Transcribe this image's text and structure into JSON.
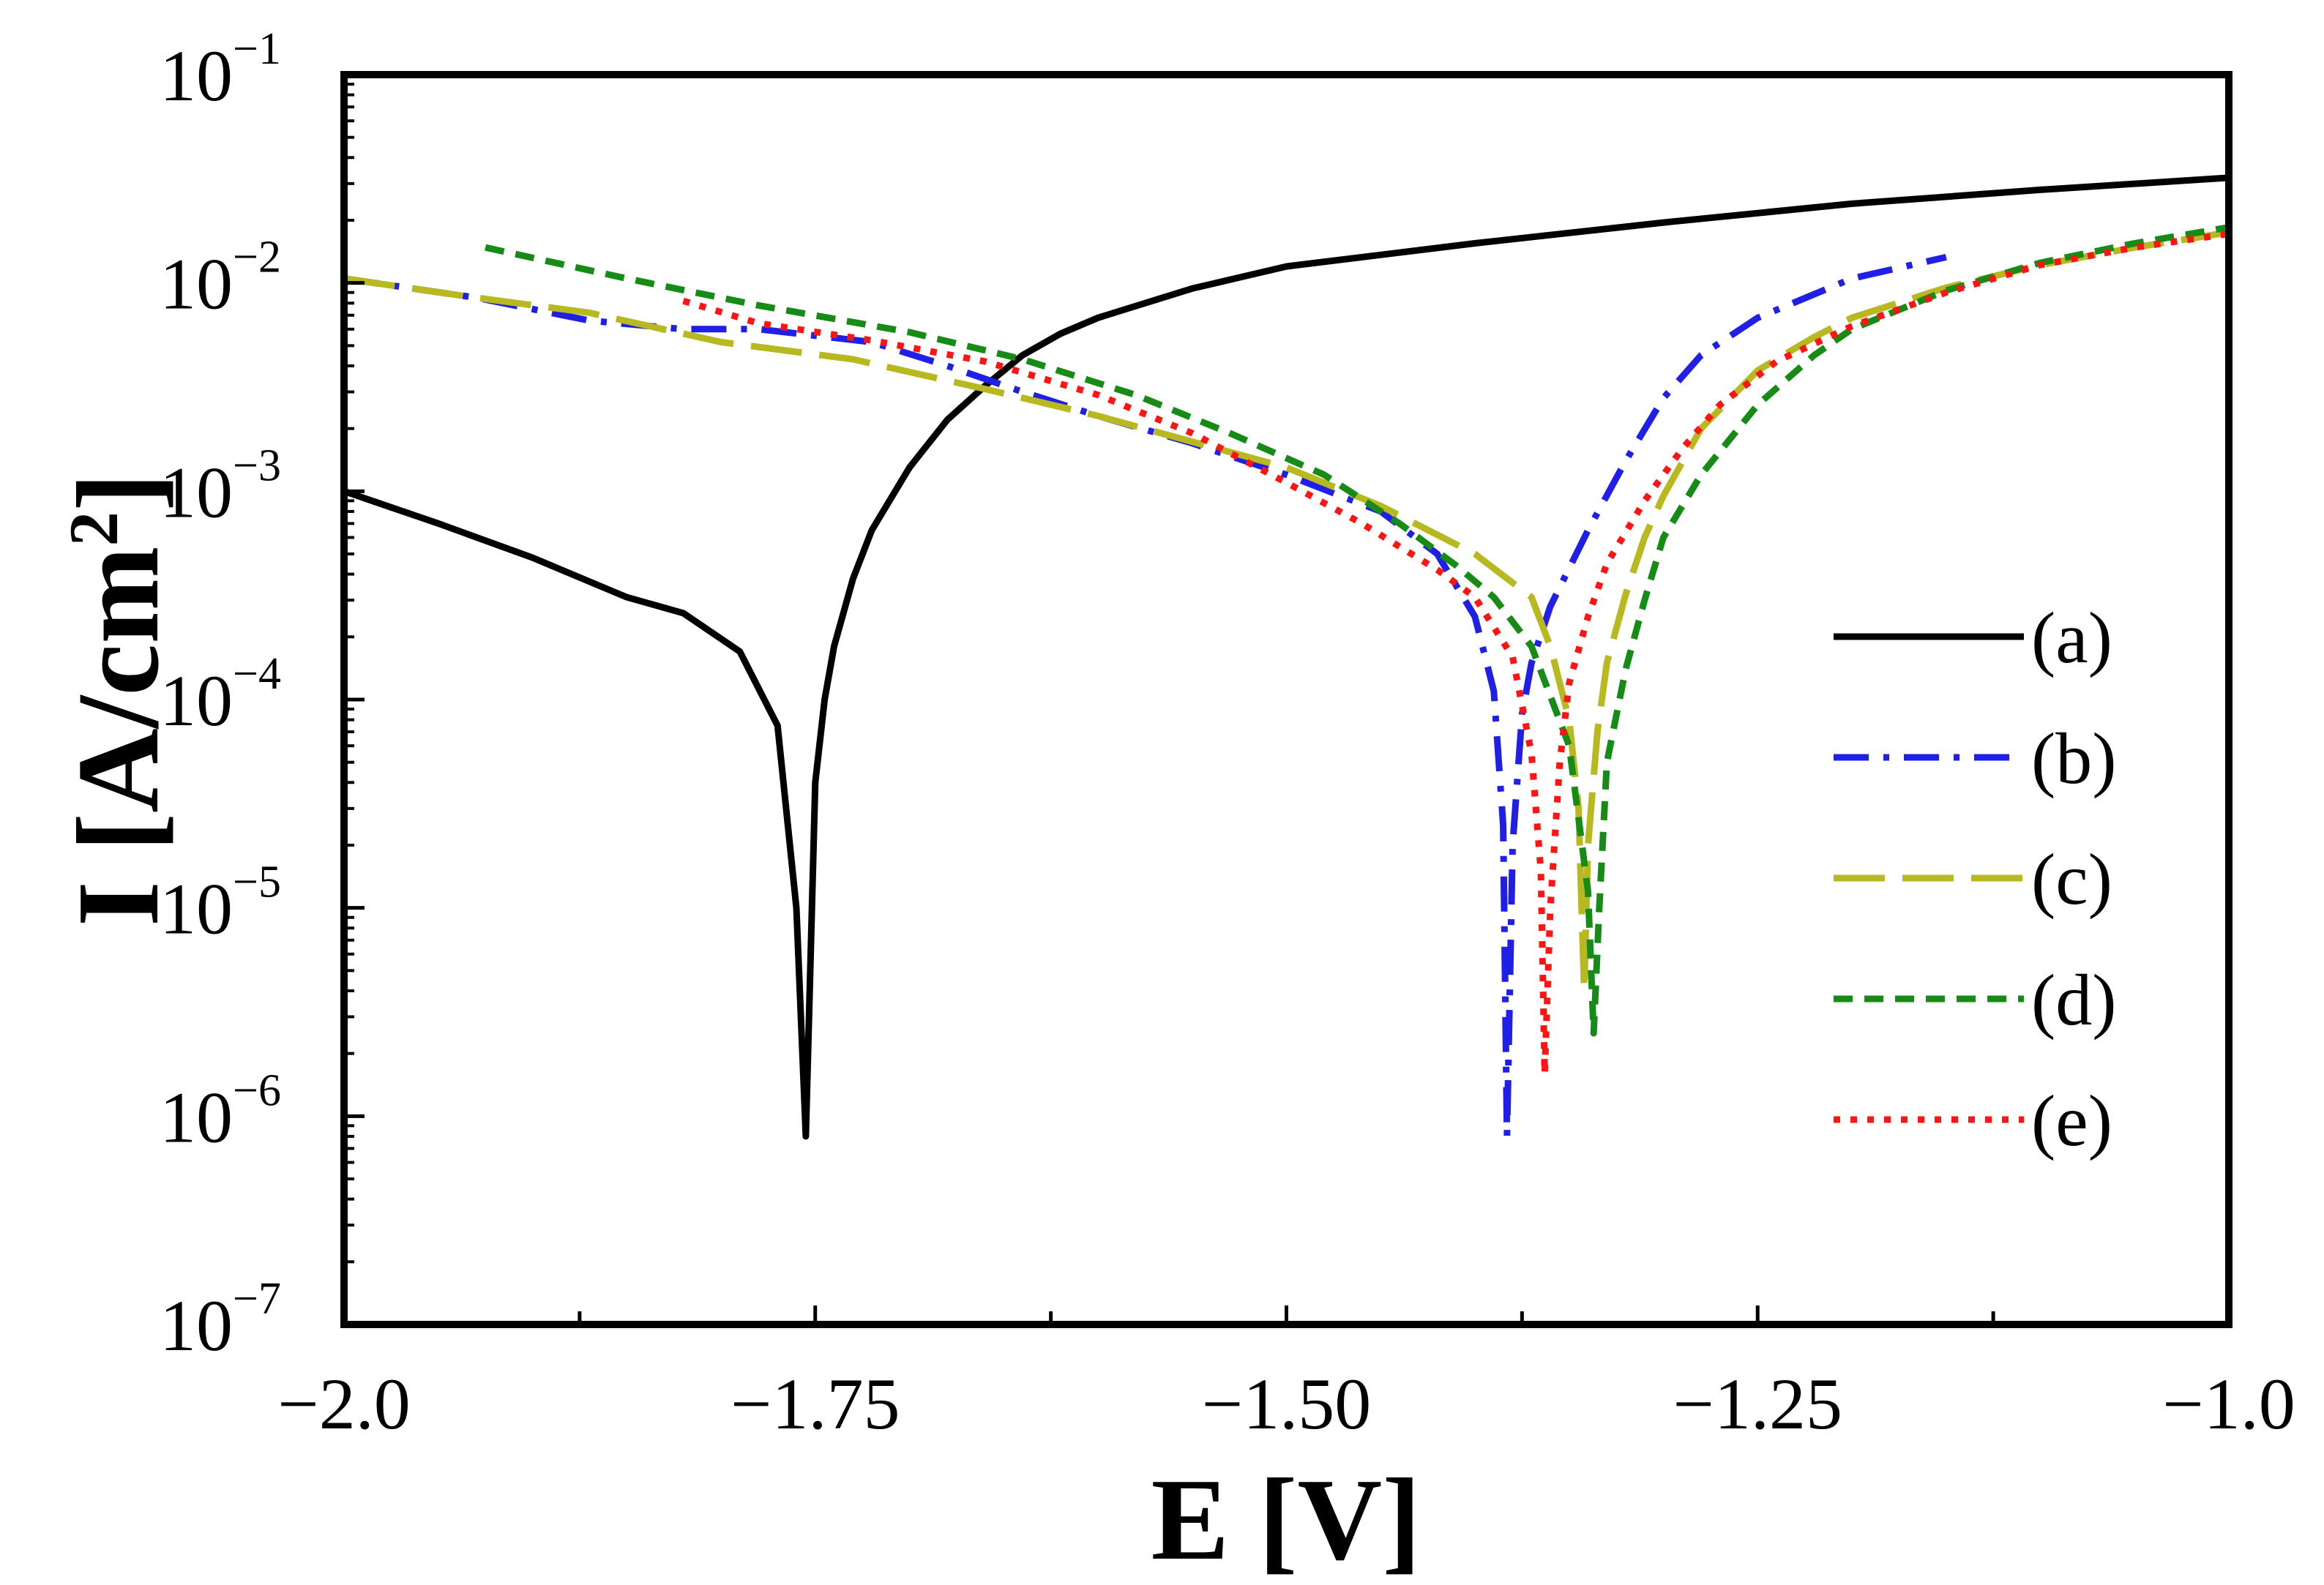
{
  "chart_data": {
    "type": "line",
    "title": "",
    "xlabel": "E [V]",
    "ylabel": "I [A/cm²]",
    "ylabel_parts": {
      "main": "I [A/cm",
      "sup": "2",
      "close": "]"
    },
    "yscale": "log",
    "xlim": [
      -2.0,
      -1.0
    ],
    "ylim": [
      1e-07,
      0.1
    ],
    "x_ticks": [
      -2.0,
      -1.75,
      -1.5,
      -1.25,
      -1.0
    ],
    "x_tick_labels": [
      "−2.0",
      "−1.75",
      "−1.50",
      "−1.25",
      "−1.0"
    ],
    "y_ticks": [
      1e-07,
      1e-06,
      1e-05,
      0.0001,
      0.001,
      0.01,
      0.1
    ],
    "y_tick_labels": [
      {
        "base": "10",
        "exp": "−7"
      },
      {
        "base": "10",
        "exp": "−6"
      },
      {
        "base": "10",
        "exp": "−5"
      },
      {
        "base": "10",
        "exp": "−4"
      },
      {
        "base": "10",
        "exp": "−3"
      },
      {
        "base": "10",
        "exp": "−2"
      },
      {
        "base": "10",
        "exp": "−1"
      }
    ],
    "grid": false,
    "legend_position": "right",
    "series": [
      {
        "name": "(a)",
        "color": "#000000",
        "style": "solid",
        "points": [
          [
            -2.0,
            0.001
          ],
          [
            -1.95,
            0.0007
          ],
          [
            -1.9,
            0.00048
          ],
          [
            -1.85,
            0.00031
          ],
          [
            -1.82,
            0.00026
          ],
          [
            -1.79,
            0.00017
          ],
          [
            -1.77,
            7.5e-05
          ],
          [
            -1.76,
            1e-05
          ],
          [
            -1.755,
            8e-07
          ],
          [
            -1.75,
            4e-05
          ],
          [
            -1.745,
            0.0001
          ],
          [
            -1.74,
            0.00018
          ],
          [
            -1.73,
            0.00038
          ],
          [
            -1.72,
            0.00065
          ],
          [
            -1.7,
            0.0013
          ],
          [
            -1.68,
            0.0022
          ],
          [
            -1.66,
            0.0032
          ],
          [
            -1.64,
            0.0045
          ],
          [
            -1.62,
            0.0057
          ],
          [
            -1.6,
            0.0068
          ],
          [
            -1.55,
            0.0094
          ],
          [
            -1.5,
            0.012
          ],
          [
            -1.4,
            0.0155
          ],
          [
            -1.3,
            0.0195
          ],
          [
            -1.2,
            0.024
          ],
          [
            -1.1,
            0.028
          ],
          [
            -1.0,
            0.032
          ]
        ]
      },
      {
        "name": "(b)",
        "color": "#1f1fe6",
        "style": "dashdot",
        "points": [
          [
            -2.0,
            0.0105
          ],
          [
            -1.93,
            0.0085
          ],
          [
            -1.87,
            0.0066
          ],
          [
            -1.82,
            0.006
          ],
          [
            -1.78,
            0.006
          ],
          [
            -1.72,
            0.0052
          ],
          [
            -1.68,
            0.004
          ],
          [
            -1.64,
            0.003
          ],
          [
            -1.6,
            0.0023
          ],
          [
            -1.55,
            0.0017
          ],
          [
            -1.5,
            0.0012
          ],
          [
            -1.45,
            0.0008
          ],
          [
            -1.42,
            0.0005
          ],
          [
            -1.4,
            0.00025
          ],
          [
            -1.39,
            0.00011
          ],
          [
            -1.385,
            2.5e-05
          ],
          [
            -1.383,
            8e-07
          ],
          [
            -1.38,
            2e-05
          ],
          [
            -1.375,
            8.5e-05
          ],
          [
            -1.37,
            0.00015
          ],
          [
            -1.36,
            0.00028
          ],
          [
            -1.34,
            0.00065
          ],
          [
            -1.32,
            0.0014
          ],
          [
            -1.3,
            0.0028
          ],
          [
            -1.28,
            0.0045
          ],
          [
            -1.25,
            0.0068
          ],
          [
            -1.2,
            0.0105
          ],
          [
            -1.15,
            0.0133
          ]
        ]
      },
      {
        "name": "(c)",
        "color": "#b8b820",
        "style": "longdash",
        "points": [
          [
            -2.0,
            0.0105
          ],
          [
            -1.93,
            0.0085
          ],
          [
            -1.87,
            0.0072
          ],
          [
            -1.8,
            0.0052
          ],
          [
            -1.73,
            0.0043
          ],
          [
            -1.66,
            0.0031
          ],
          [
            -1.6,
            0.0023
          ],
          [
            -1.5,
            0.0013
          ],
          [
            -1.45,
            0.00085
          ],
          [
            -1.4,
            0.0005
          ],
          [
            -1.37,
            0.00031
          ],
          [
            -1.36,
            0.00018
          ],
          [
            -1.35,
            8e-05
          ],
          [
            -1.345,
            3e-05
          ],
          [
            -1.342,
            4e-06
          ],
          [
            -1.34,
            2e-05
          ],
          [
            -1.335,
            7e-05
          ],
          [
            -1.33,
            0.00015
          ],
          [
            -1.32,
            0.00032
          ],
          [
            -1.31,
            0.0006
          ],
          [
            -1.3,
            0.00095
          ],
          [
            -1.28,
            0.002
          ],
          [
            -1.25,
            0.0038
          ],
          [
            -1.22,
            0.0055
          ],
          [
            -1.2,
            0.0068
          ],
          [
            -1.15,
            0.0095
          ],
          [
            -1.1,
            0.0122
          ],
          [
            -1.05,
            0.0148
          ],
          [
            -1.0,
            0.0175
          ]
        ]
      },
      {
        "name": "(d)",
        "color": "#168c16",
        "style": "dashed",
        "points": [
          [
            -1.925,
            0.0148
          ],
          [
            -1.85,
            0.0105
          ],
          [
            -1.78,
            0.0078
          ],
          [
            -1.7,
            0.0058
          ],
          [
            -1.64,
            0.0043
          ],
          [
            -1.58,
            0.0029
          ],
          [
            -1.53,
            0.0019
          ],
          [
            -1.48,
            0.0012
          ],
          [
            -1.44,
            0.0007
          ],
          [
            -1.41,
            0.00044
          ],
          [
            -1.39,
            0.00031
          ],
          [
            -1.37,
            0.00018
          ],
          [
            -1.35,
            6e-05
          ],
          [
            -1.34,
            1.2e-05
          ],
          [
            -1.337,
            2.5e-06
          ],
          [
            -1.334,
            1e-05
          ],
          [
            -1.33,
            5e-05
          ],
          [
            -1.32,
            0.00014
          ],
          [
            -1.31,
            0.0003
          ],
          [
            -1.3,
            0.0006
          ],
          [
            -1.28,
            0.0012
          ],
          [
            -1.25,
            0.0026
          ],
          [
            -1.22,
            0.0045
          ],
          [
            -1.2,
            0.006
          ],
          [
            -1.15,
            0.0092
          ],
          [
            -1.1,
            0.0125
          ],
          [
            -1.05,
            0.0155
          ],
          [
            -1.0,
            0.0185
          ]
        ]
      },
      {
        "name": "(e)",
        "color": "#ff1414",
        "style": "dotted",
        "points": [
          [
            -1.82,
            0.0082
          ],
          [
            -1.78,
            0.0064
          ],
          [
            -1.72,
            0.0053
          ],
          [
            -1.66,
            0.0042
          ],
          [
            -1.6,
            0.0029
          ],
          [
            -1.55,
            0.0019
          ],
          [
            -1.5,
            0.0011
          ],
          [
            -1.46,
            0.0007
          ],
          [
            -1.42,
            0.00042
          ],
          [
            -1.4,
            0.00031
          ],
          [
            -1.38,
            0.00016
          ],
          [
            -1.37,
            5.5e-05
          ],
          [
            -1.365,
            1.5e-05
          ],
          [
            -1.363,
            1.6e-06
          ],
          [
            -1.36,
            1e-05
          ],
          [
            -1.355,
            5e-05
          ],
          [
            -1.35,
            0.00012
          ],
          [
            -1.34,
            0.00025
          ],
          [
            -1.33,
            0.00045
          ],
          [
            -1.31,
            0.0009
          ],
          [
            -1.29,
            0.0016
          ],
          [
            -1.27,
            0.0026
          ],
          [
            -1.24,
            0.0042
          ],
          [
            -1.2,
            0.0062
          ],
          [
            -1.15,
            0.009
          ],
          [
            -1.1,
            0.0122
          ],
          [
            -1.05,
            0.0148
          ],
          [
            -1.0,
            0.0172
          ]
        ]
      }
    ]
  }
}
